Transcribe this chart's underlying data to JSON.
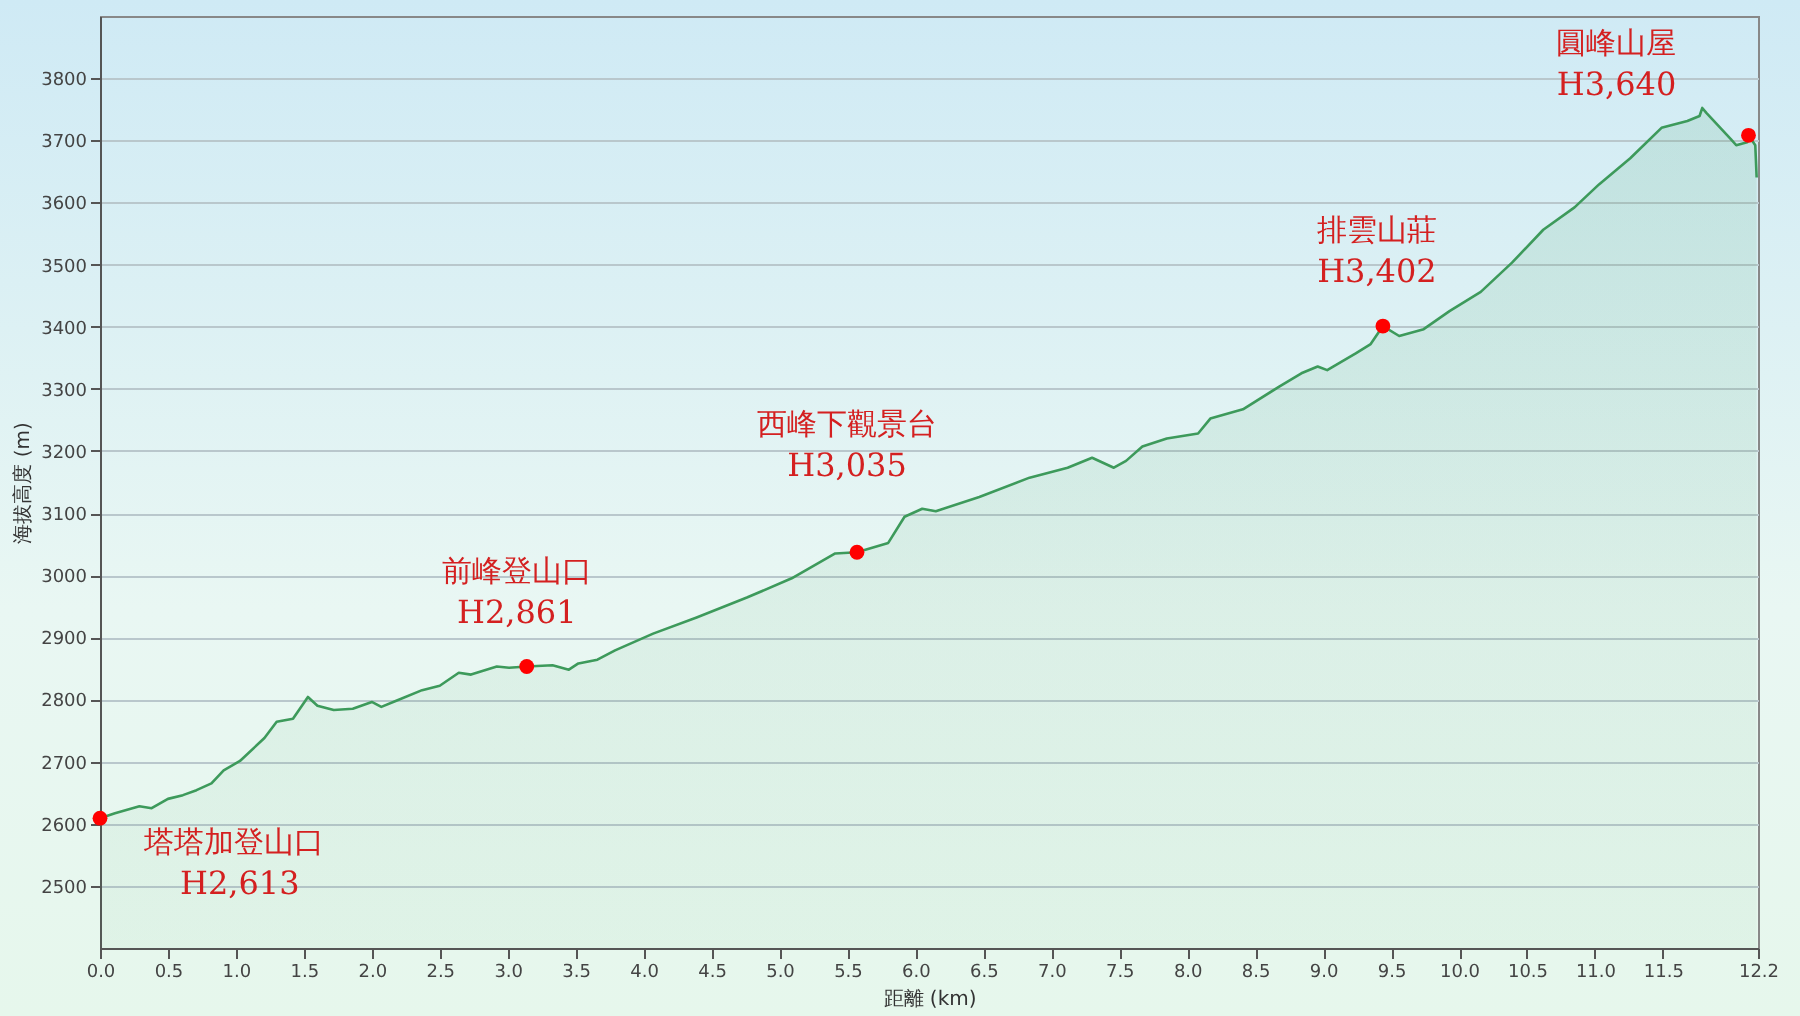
{
  "chart_data": {
    "type": "area",
    "xlabel": "距離 (km)",
    "ylabel": "海拔高度 (m)",
    "xlim": [
      0,
      12.2
    ],
    "ylim": [
      2400,
      3900
    ],
    "xticks": [
      {
        "value": 0,
        "label": "0.0"
      },
      {
        "value": 0.5,
        "label": "0.5"
      },
      {
        "value": 1,
        "label": "1.0"
      },
      {
        "value": 1.5,
        "label": "1.5"
      },
      {
        "value": 2,
        "label": "2.0"
      },
      {
        "value": 2.5,
        "label": "2.5"
      },
      {
        "value": 3,
        "label": "3.0"
      },
      {
        "value": 3.5,
        "label": "3.5"
      },
      {
        "value": 4,
        "label": "4.0"
      },
      {
        "value": 4.5,
        "label": "4.5"
      },
      {
        "value": 5,
        "label": "5.0"
      },
      {
        "value": 5.5,
        "label": "5.5"
      },
      {
        "value": 6,
        "label": "6.0"
      },
      {
        "value": 6.5,
        "label": "6.5"
      },
      {
        "value": 7,
        "label": "7.0"
      },
      {
        "value": 7.5,
        "label": "7.5"
      },
      {
        "value": 8,
        "label": "8.0"
      },
      {
        "value": 8.5,
        "label": "8.5"
      },
      {
        "value": 9,
        "label": "9.0"
      },
      {
        "value": 9.5,
        "label": "9.5"
      },
      {
        "value": 10,
        "label": "10.0"
      },
      {
        "value": 10.5,
        "label": "10.5"
      },
      {
        "value": 11,
        "label": "11.0"
      },
      {
        "value": 11.5,
        "label": "11.5"
      },
      {
        "value": 12.2,
        "label": "12.2"
      }
    ],
    "yticks": [
      2500,
      2600,
      2700,
      2800,
      2900,
      3000,
      3100,
      3200,
      3300,
      3400,
      3500,
      3600,
      3700,
      3800
    ],
    "grid": "y",
    "series": [
      {
        "color": "#3d9a5b",
        "marker": "none",
        "x": [
          0,
          0.11,
          0.29,
          0.38,
          0.5,
          0.61,
          0.71,
          0.82,
          0.91,
          1.03,
          1.21,
          1.3,
          1.42,
          1.53,
          1.6,
          1.72,
          1.86,
          2,
          2.07,
          2.18,
          2.37,
          2.5,
          2.64,
          2.73,
          2.92,
          3.01,
          3.14,
          3.33,
          3.45,
          3.52,
          3.66,
          3.79,
          4.07,
          4.39,
          4.76,
          5.09,
          5.41,
          5.57,
          5.8,
          5.92,
          6.05,
          6.15,
          6.47,
          6.84,
          7.12,
          7.3,
          7.46,
          7.55,
          7.67,
          7.85,
          8.08,
          8.17,
          8.41,
          8.68,
          8.84,
          8.96,
          9.03,
          9.24,
          9.35,
          9.44,
          9.56,
          9.74,
          9.93,
          10.16,
          10.39,
          10.62,
          10.85,
          11.03,
          11.26,
          11.49,
          11.68,
          11.77,
          11.79,
          11.82,
          12,
          12.04,
          12.12,
          12.13,
          12.18,
          12.19
        ],
        "values": [
          2609,
          2617,
          2628,
          2625,
          2640,
          2646,
          2654,
          2665,
          2686,
          2701,
          2738,
          2764,
          2769,
          2804,
          2790,
          2783,
          2785,
          2796,
          2788,
          2798,
          2815,
          2822,
          2843,
          2840,
          2853,
          2851,
          2853,
          2855,
          2848,
          2858,
          2864,
          2879,
          2906,
          2932,
          2964,
          2995,
          3035,
          3037,
          3052,
          3094,
          3107,
          3103,
          3126,
          3157,
          3173,
          3189,
          3173,
          3184,
          3207,
          3220,
          3228,
          3252,
          3267,
          3304,
          3325,
          3336,
          3330,
          3357,
          3372,
          3401,
          3385,
          3396,
          3425,
          3456,
          3503,
          3556,
          3592,
          3629,
          3671,
          3720,
          3731,
          3739,
          3752,
          3744,
          3702,
          3692,
          3697,
          3708,
          3692,
          3640
        ]
      },
      {
        "type": "scatter",
        "color": "#ff0000",
        "marker": "circle",
        "x": [
          0,
          3.14,
          5.57,
          9.44,
          12.13
        ],
        "values": [
          2609,
          2853,
          3037,
          3401,
          3708
        ]
      }
    ],
    "annotations": [
      {
        "text": "塔塔加登山口\nH2,613",
        "x": 0,
        "y": 2609
      },
      {
        "text": "前峰登山口\nH2,861",
        "x": 3.14,
        "y": 2853
      },
      {
        "text": "西峰下觀景台\nH3,035",
        "x": 5.57,
        "y": 3037
      },
      {
        "text": "排雲山莊\nH3,402",
        "x": 9.44,
        "y": 3401
      },
      {
        "text": "圓峰山屋\nH3,640",
        "x": 12.13,
        "y": 3708
      }
    ]
  }
}
